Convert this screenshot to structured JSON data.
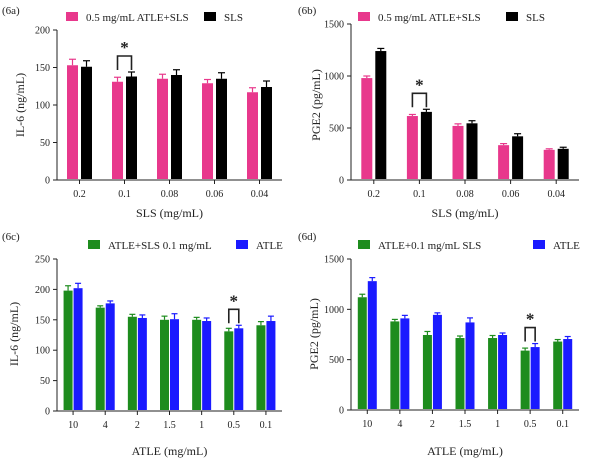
{
  "chart_data": [
    {
      "panel": "(6a)",
      "type": "bar",
      "categories": [
        "0.2",
        "0.1",
        "0.08",
        "0.06",
        "0.04"
      ],
      "series": [
        {
          "name": "0.5 mg/mL ATLE+SLS",
          "color": "#e8388c",
          "values": [
            153,
            131,
            135,
            129,
            117
          ],
          "errors": [
            8,
            6,
            6,
            5,
            6
          ]
        },
        {
          "name": "SLS",
          "color": "#000000",
          "values": [
            151,
            138,
            140,
            135,
            124
          ],
          "errors": [
            8,
            6,
            7,
            8,
            8
          ]
        }
      ],
      "xlabel": "SLS (mg/mL)",
      "ylabel": "IL-6 (ng/mL)",
      "ylim": [
        0,
        200
      ],
      "yticks": [
        "0",
        "50",
        "100",
        "150",
        "200"
      ],
      "significance": {
        "category_index": 1,
        "label": "*"
      }
    },
    {
      "panel": "(6b)",
      "type": "bar",
      "categories": [
        "0.2",
        "0.1",
        "0.08",
        "0.06",
        "0.04"
      ],
      "series": [
        {
          "name": "0.5 mg/mL ATLE+SLS",
          "color": "#e8388c",
          "values": [
            980,
            615,
            520,
            335,
            290
          ],
          "errors": [
            20,
            15,
            20,
            15,
            10
          ]
        },
        {
          "name": "SLS",
          "color": "#000000",
          "values": [
            1240,
            655,
            545,
            420,
            300
          ],
          "errors": [
            25,
            25,
            25,
            25,
            15
          ]
        }
      ],
      "xlabel": "SLS (mg/mL)",
      "ylabel": "PGE2 (pg/mL)",
      "ylim": [
        0,
        1500
      ],
      "yticks": [
        "0",
        "500",
        "1000",
        "1500"
      ],
      "significance": {
        "category_index": 1,
        "label": "*"
      }
    },
    {
      "panel": "(6c)",
      "type": "bar",
      "categories": [
        "10",
        "4",
        "2",
        "1.5",
        "1",
        "0.5",
        "0.1"
      ],
      "series": [
        {
          "name": "ATLE+SLS 0.1 mg/mL",
          "color": "#1e8c1e",
          "values": [
            198,
            170,
            155,
            150,
            150,
            131,
            141
          ],
          "errors": [
            8,
            3,
            4,
            6,
            4,
            5,
            6
          ]
        },
        {
          "name": "ATLE",
          "color": "#1a1aff",
          "values": [
            202,
            177,
            153,
            151,
            148,
            136,
            148
          ],
          "errors": [
            8,
            4,
            5,
            9,
            5,
            5,
            8
          ]
        }
      ],
      "xlabel": "ATLE (mg/mL)",
      "ylabel": "IL-6 (ng/mL)",
      "ylim": [
        0,
        250
      ],
      "yticks": [
        "0",
        "50",
        "100",
        "150",
        "200",
        "250"
      ],
      "significance": {
        "category_index": 5,
        "label": "*"
      }
    },
    {
      "panel": "(6d)",
      "type": "bar",
      "categories": [
        "10",
        "4",
        "2",
        "1.5",
        "1",
        "0.5",
        "0.1"
      ],
      "series": [
        {
          "name": "ATLE+0.1 mg/mL SLS",
          "color": "#1e8c1e",
          "values": [
            1120,
            880,
            745,
            715,
            715,
            590,
            680
          ],
          "errors": [
            30,
            20,
            35,
            20,
            25,
            25,
            20
          ]
        },
        {
          "name": "ATLE",
          "color": "#1a1aff",
          "values": [
            1280,
            910,
            945,
            870,
            745,
            625,
            705
          ],
          "errors": [
            35,
            30,
            20,
            45,
            20,
            35,
            25
          ]
        }
      ],
      "xlabel": "ATLE (mg/mL)",
      "ylabel": "PGE2 (pg/mL)",
      "ylim": [
        0,
        1500
      ],
      "yticks": [
        "0",
        "500",
        "1000",
        "1500"
      ],
      "significance": {
        "category_index": 5,
        "label": "*"
      }
    }
  ]
}
